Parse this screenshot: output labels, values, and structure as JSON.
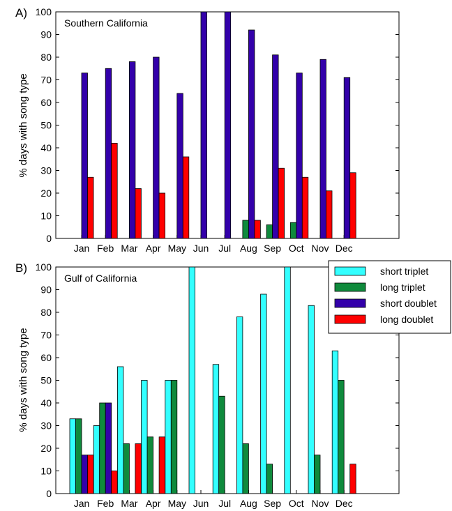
{
  "colors": {
    "short triplet": "#33ffff",
    "long triplet": "#0f8a3c",
    "short doublet": "#3300aa",
    "long doublet": "#ff0000"
  },
  "legend": {
    "entries": [
      "short triplet",
      "long triplet",
      "short doublet",
      "long doublet"
    ],
    "placement": "top-right of panel B"
  },
  "chart_data": [
    {
      "type": "bar",
      "panel_label": "A)",
      "title": "Southern California",
      "ylabel": "% days with song type",
      "xlabel": "",
      "ylim": [
        0,
        100
      ],
      "yticks": [
        0,
        10,
        20,
        30,
        40,
        50,
        60,
        70,
        80,
        90,
        100
      ],
      "categories": [
        "Jan",
        "Feb",
        "Mar",
        "Apr",
        "May",
        "Jun",
        "Jul",
        "Aug",
        "Sep",
        "Oct",
        "Nov",
        "Dec"
      ],
      "series": [
        {
          "name": "short triplet",
          "values": [
            0,
            0,
            0,
            0,
            0,
            0,
            0,
            0,
            0,
            0,
            0,
            0
          ]
        },
        {
          "name": "long triplet",
          "values": [
            0,
            0,
            0,
            0,
            0,
            0,
            0,
            8,
            6,
            7,
            0,
            0
          ]
        },
        {
          "name": "short doublet",
          "values": [
            73,
            75,
            78,
            80,
            64,
            100,
            100,
            92,
            81,
            73,
            79,
            71
          ]
        },
        {
          "name": "long doublet",
          "values": [
            27,
            42,
            22,
            20,
            36,
            0,
            0,
            8,
            31,
            27,
            21,
            29
          ]
        }
      ]
    },
    {
      "type": "bar",
      "panel_label": "B)",
      "title": "Gulf of California",
      "ylabel": "% days with song type",
      "xlabel": "",
      "ylim": [
        0,
        100
      ],
      "yticks": [
        0,
        10,
        20,
        30,
        40,
        50,
        60,
        70,
        80,
        90,
        100
      ],
      "categories": [
        "Jan",
        "Feb",
        "Mar",
        "Apr",
        "May",
        "Jun",
        "Jul",
        "Aug",
        "Sep",
        "Oct",
        "Nov",
        "Dec"
      ],
      "series": [
        {
          "name": "short triplet",
          "values": [
            33,
            30,
            56,
            50,
            50,
            100,
            57,
            78,
            88,
            100,
            83,
            63
          ]
        },
        {
          "name": "long triplet",
          "values": [
            33,
            40,
            22,
            25,
            50,
            0,
            43,
            22,
            13,
            0,
            17,
            50
          ]
        },
        {
          "name": "short doublet",
          "values": [
            17,
            40,
            0,
            0,
            0,
            0,
            0,
            0,
            0,
            0,
            0,
            0
          ]
        },
        {
          "name": "long doublet",
          "values": [
            17,
            10,
            22,
            25,
            0,
            0,
            0,
            0,
            0,
            0,
            0,
            13
          ]
        }
      ]
    }
  ]
}
